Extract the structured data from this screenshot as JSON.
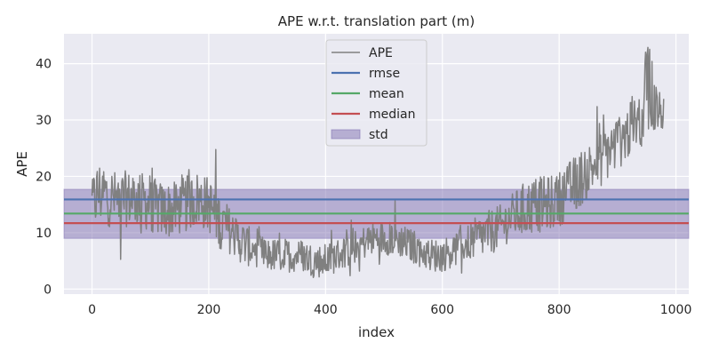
{
  "chart_data": {
    "type": "line",
    "title": "APE w.r.t. translation part (m)",
    "xlabel": "index",
    "ylabel": "APE",
    "xlim": [
      -48,
      1022
    ],
    "ylim": [
      -0.9,
      45.3
    ],
    "x_ticks": [
      0,
      200,
      400,
      600,
      800,
      1000
    ],
    "y_ticks": [
      0,
      10,
      20,
      30,
      40
    ],
    "grid": true,
    "legend_position": "top-center",
    "background_color": "#eaeaf2",
    "stats": {
      "rmse": 15.9,
      "mean": 13.4,
      "median": 11.7,
      "std_band": [
        9.0,
        17.7
      ]
    },
    "ape_profile": {
      "index_count": 980,
      "x": [
        0,
        10,
        20,
        40,
        60,
        80,
        100,
        120,
        140,
        160,
        180,
        200,
        220,
        240,
        260,
        280,
        300,
        320,
        340,
        360,
        380,
        400,
        420,
        440,
        460,
        480,
        500,
        520,
        540,
        560,
        580,
        600,
        620,
        640,
        660,
        680,
        700,
        720,
        740,
        760,
        780,
        800,
        820,
        840,
        860,
        880,
        900,
        920,
        940,
        960,
        975
      ],
      "y": [
        15,
        17,
        17,
        16,
        16,
        16,
        15,
        14,
        14,
        15,
        16,
        15,
        12,
        10,
        8,
        7,
        6,
        6,
        6,
        6,
        5,
        5,
        6,
        7,
        8,
        9,
        9,
        9,
        8,
        7,
        6,
        6,
        7,
        8,
        9,
        10,
        11,
        13,
        14,
        15,
        15,
        16,
        18,
        20,
        22,
        24,
        26,
        28,
        30,
        33,
        31
      ],
      "amplitude": [
        5,
        6,
        6,
        5,
        5,
        5,
        5,
        5,
        5,
        5,
        5,
        5,
        5,
        4,
        4,
        3,
        3,
        3,
        3,
        3,
        3,
        3,
        3,
        3,
        3,
        3,
        3,
        3,
        3,
        3,
        3,
        3,
        3,
        3,
        4,
        4,
        4,
        4,
        5,
        5,
        5,
        5,
        5,
        5,
        5,
        5,
        5,
        5,
        5,
        6,
        3
      ]
    },
    "series": [
      {
        "name": "APE",
        "color": "#808080"
      },
      {
        "name": "rmse",
        "color": "#4c72b0"
      },
      {
        "name": "mean",
        "color": "#55a868"
      },
      {
        "name": "median",
        "color": "#c44e52"
      },
      {
        "name": "std",
        "color": "#8172b2"
      }
    ]
  }
}
